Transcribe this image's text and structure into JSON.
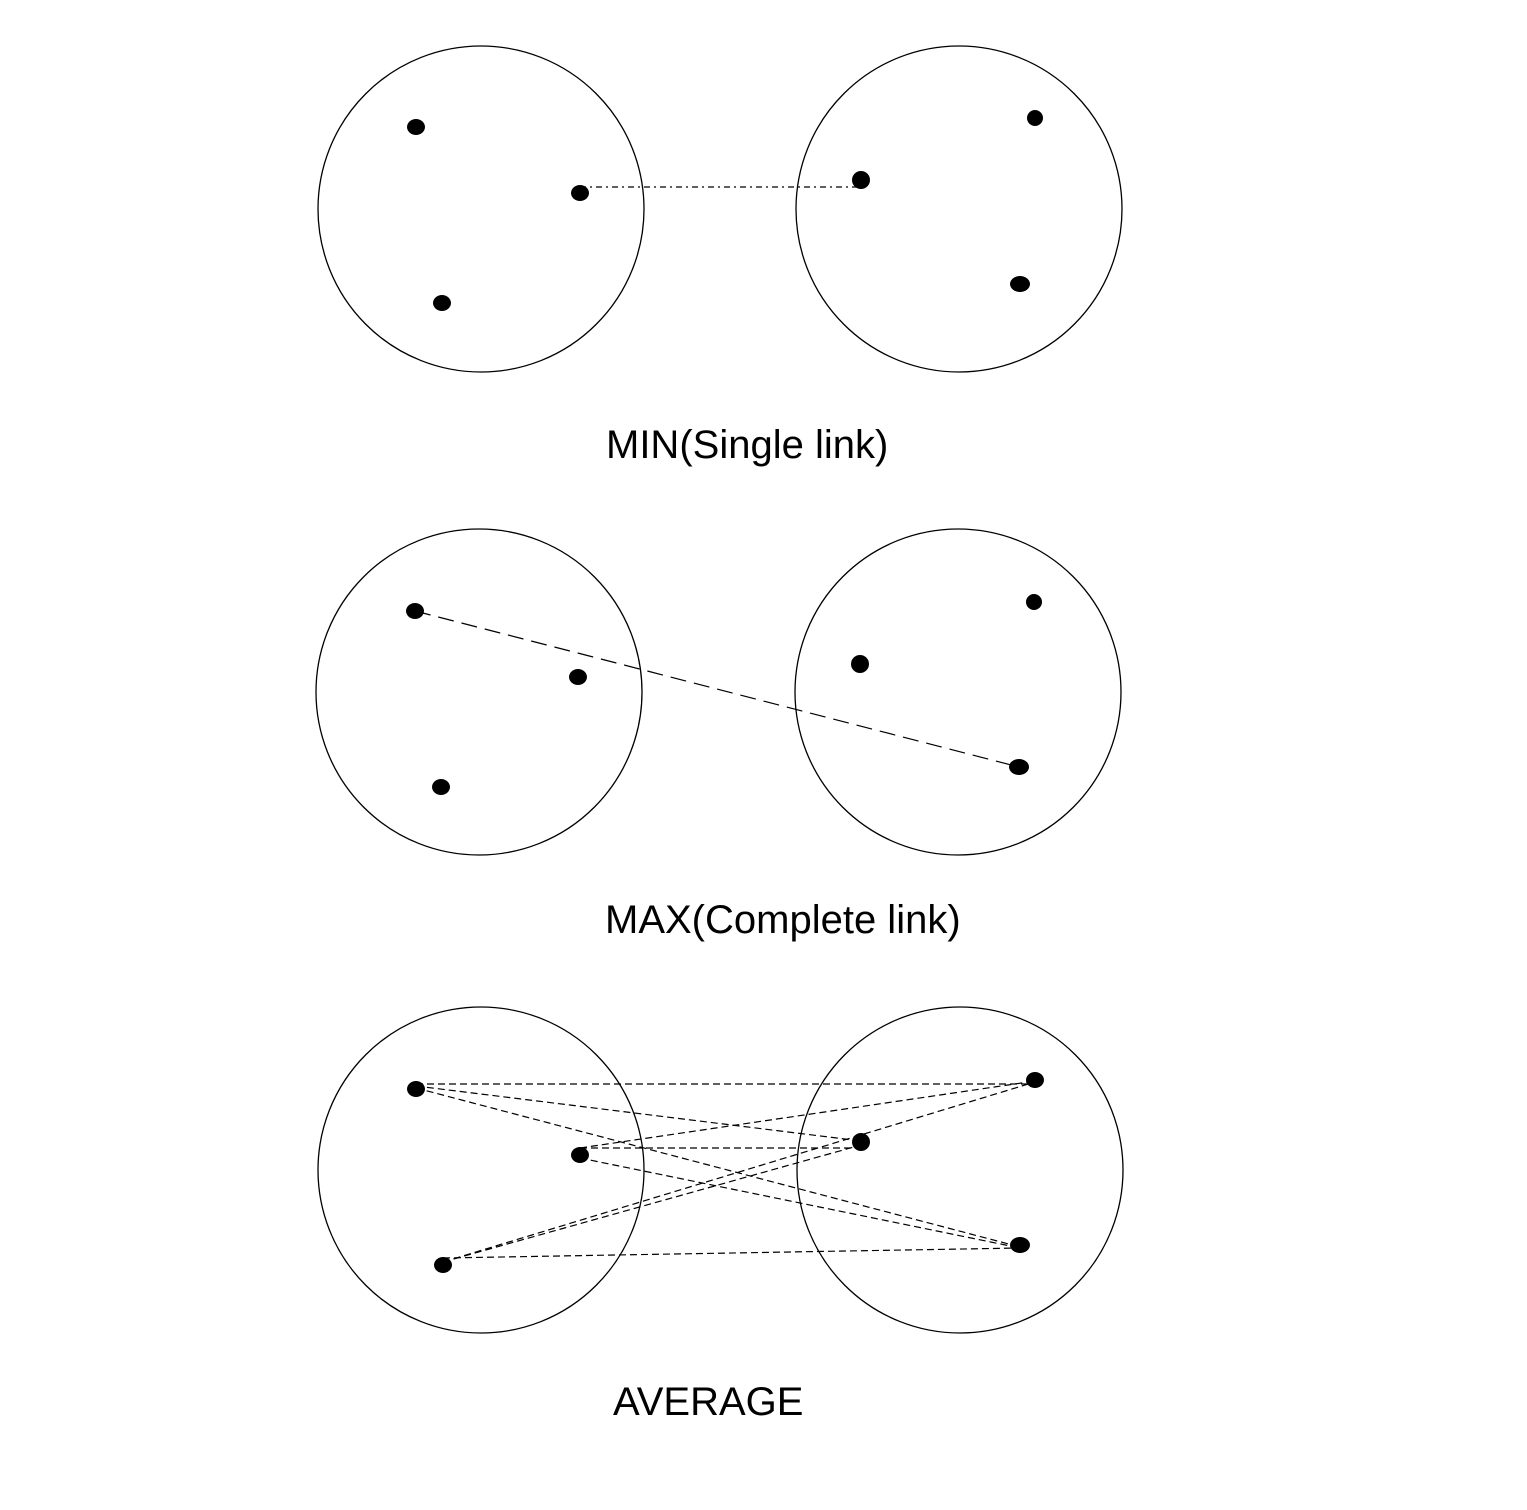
{
  "panels": [
    {
      "key": "min",
      "caption": "MIN(Single link)",
      "link_style": "dash-dot"
    },
    {
      "key": "max",
      "caption": "MAX(Complete link)",
      "link_style": "long-dash"
    },
    {
      "key": "avg",
      "caption": "AVERAGE",
      "link_style": "short-dash"
    }
  ],
  "colors": {
    "ink": "#000000",
    "background": "#ffffff"
  }
}
